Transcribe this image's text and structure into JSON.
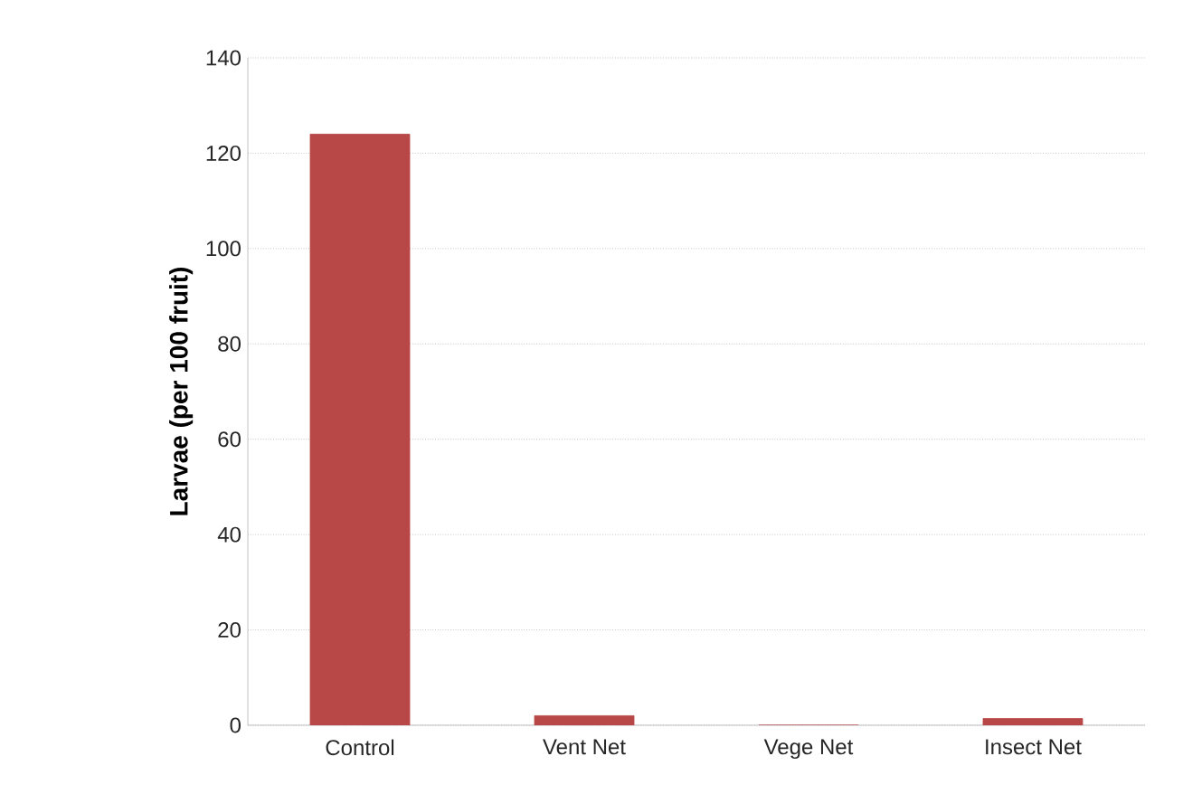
{
  "chart_data": {
    "type": "bar",
    "ylabel": "Larvae (per 100 fruit)",
    "categories": [
      "Control",
      "Vent Net",
      "Vege Net",
      "Insect Net"
    ],
    "values": [
      124,
      2,
      0,
      1.4
    ],
    "color": "#b84848",
    "ylim": [
      0,
      140
    ],
    "yticks": [
      0,
      20,
      40,
      60,
      80,
      100,
      120,
      140
    ],
    "grid": "y"
  }
}
